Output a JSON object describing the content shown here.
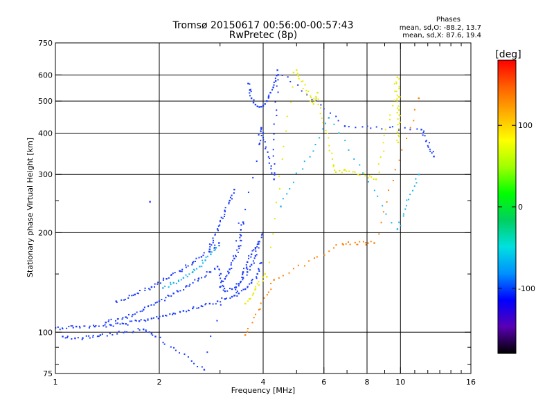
{
  "chart_data": {
    "type": "scatter",
    "title": "Tromsø 20150617 00:56:00-00:57:43",
    "subtitle": "RwPretec (8p)",
    "xlabel": "Frequency [MHz]",
    "ylabel": "Stationary phase Virtual Height [km]",
    "xscale": "log",
    "yscale": "log",
    "xlim": [
      1,
      16
    ],
    "ylim": [
      75,
      750
    ],
    "x_ticks": [
      "1",
      "2",
      "4",
      "6",
      "8",
      "10",
      "16"
    ],
    "x_tick_values": [
      1,
      2,
      4,
      6,
      8,
      10,
      16
    ],
    "x_grid": [
      2,
      4,
      6,
      8,
      10
    ],
    "x_minor_ticks": [
      3,
      5,
      7,
      9,
      11,
      12,
      13,
      14,
      15
    ],
    "y_ticks": [
      "75",
      "100",
      "200",
      "300",
      "400",
      "500",
      "600",
      "750"
    ],
    "y_tick_values": [
      75,
      100,
      200,
      300,
      400,
      500,
      600,
      750
    ],
    "y_grid": [
      100,
      200,
      300,
      400,
      500,
      600
    ],
    "y_minor_ticks": [
      80,
      90,
      150,
      250
    ],
    "grid": true,
    "phase_info": {
      "heading": "Phases",
      "line_o": "mean, sd,O:  -88.2, 13.7",
      "line_x": "mean, sd,X:   87.6, 19.4"
    },
    "colorbar": {
      "label": "[deg]",
      "range": [
        -180,
        180
      ],
      "ticks": [
        "100",
        "0",
        "-100"
      ],
      "tick_values": [
        100,
        0,
        -100
      ],
      "colors": [
        "#000000",
        "#5a00b4",
        "#0000ff",
        "#0090ff",
        "#00e0e0",
        "#00d060",
        "#00ff00",
        "#a0ff00",
        "#ffff00",
        "#ffb000",
        "#ff6000",
        "#ff0000"
      ]
    },
    "series": [
      {
        "color": "#1a3cff",
        "traces": [
          {
            "x": [
              1.0,
              1.15,
              1.3,
              1.45,
              1.6,
              1.75,
              1.9,
              2.05,
              2.2,
              2.35,
              2.5,
              2.65,
              2.8,
              2.95,
              3.1,
              3.25,
              3.4,
              3.55,
              3.7,
              3.85,
              3.95
            ],
            "y": [
              103,
              104,
              104,
              105,
              106,
              108,
              110,
              112,
              114,
              116,
              118,
              120,
              122,
              124,
              126,
              128,
              131,
              135,
              141,
              150,
              162
            ]
          },
          {
            "x": [
              1.4,
              1.6,
              1.8,
              2.0,
              2.2,
              2.4,
              2.6,
              2.8,
              2.95,
              3.1,
              3.25,
              3.4,
              3.5,
              3.6,
              3.7,
              3.8,
              3.88
            ],
            "y": [
              107,
              111,
              117,
              124,
              131,
              138,
              145,
              152,
              158,
              133,
              135,
              140,
              146,
              152,
              160,
              170,
              185
            ]
          },
          {
            "x": [
              1.5,
              1.7,
              1.9,
              2.1,
              2.3,
              2.5,
              2.65,
              2.8,
              2.9,
              2.98
            ],
            "y": [
              124,
              130,
              137,
              145,
              153,
              162,
              169,
              175,
              180,
              186
            ]
          },
          {
            "x": [
              3.0,
              3.1,
              3.2,
              3.3,
              3.4,
              3.45,
              3.5
            ],
            "y": [
              137,
              145,
              155,
              167,
              182,
              196,
              215
            ]
          },
          {
            "x": [
              3.3,
              3.4,
              3.5,
              3.6,
              3.7,
              3.8,
              3.9,
              3.98
            ],
            "y": [
              129,
              140,
              152,
              163,
              172,
              180,
              188,
              198
            ]
          },
          {
            "x": [
              2.8,
              2.95,
              3.1,
              3.2,
              3.3
            ],
            "y": [
              178,
              205,
              232,
              250,
              270
            ]
          },
          {
            "x": [
              3.62,
              3.66,
              3.7,
              3.75,
              3.8,
              3.85,
              3.9,
              3.95,
              4.0,
              4.05,
              4.1,
              4.15,
              4.2,
              4.28,
              4.35,
              4.42
            ],
            "y": [
              565,
              540,
              510,
              495,
              488,
              482,
              480,
              481,
              484,
              490,
              500,
              515,
              530,
              550,
              575,
              600
            ]
          },
          {
            "x": [
              1.05,
              1.2,
              1.35,
              1.8,
              1.9,
              1.95,
              2.7,
              3.9,
              3.95,
              4.0,
              4.3,
              4.4,
              6.9,
              11.5,
              12.5
            ],
            "y": [
              97,
              96,
              98,
              102,
              99,
              97,
              77,
              370,
              415,
              400,
              290,
              620,
              420,
              410,
              340
            ]
          },
          {
            "x": [
              1.88
            ],
            "y": [
              248
            ]
          }
        ]
      },
      {
        "color": "#19b4ee",
        "traces": [
          {
            "x": [
              2.05,
              2.2,
              2.35,
              2.5,
              2.62,
              2.72,
              2.82,
              2.92
            ],
            "y": [
              136,
              141,
              146,
              152,
              158,
              165,
              172,
              180
            ]
          },
          {
            "x": [
              4.5,
              6.2,
              9.8,
              11.3
            ],
            "y": [
              240,
              445,
              205,
              300
            ]
          }
        ]
      },
      {
        "color": "#e8e800",
        "traces": [
          {
            "x": [
              3.55,
              3.65,
              3.75,
              3.8,
              4.05,
              4.1,
              4.9,
              5.0,
              5.05,
              5.6,
              5.7,
              5.75,
              6.4,
              6.5,
              6.9,
              8.5,
              9.8,
              9.9,
              9.85
            ],
            "y": [
              122,
              126,
              131,
              135,
              150,
              147,
              610,
              620,
              600,
              490,
              510,
              530,
              320,
              305,
              310,
              290,
              590,
              470,
              375
            ]
          }
        ]
      },
      {
        "color": "#ff8000",
        "traces": [
          {
            "x": [
              3.55,
              4.3,
              6.8,
              8.4,
              11.3
            ],
            "y": [
              98,
              144,
              185,
              186,
              510
            ]
          }
        ]
      }
    ]
  }
}
